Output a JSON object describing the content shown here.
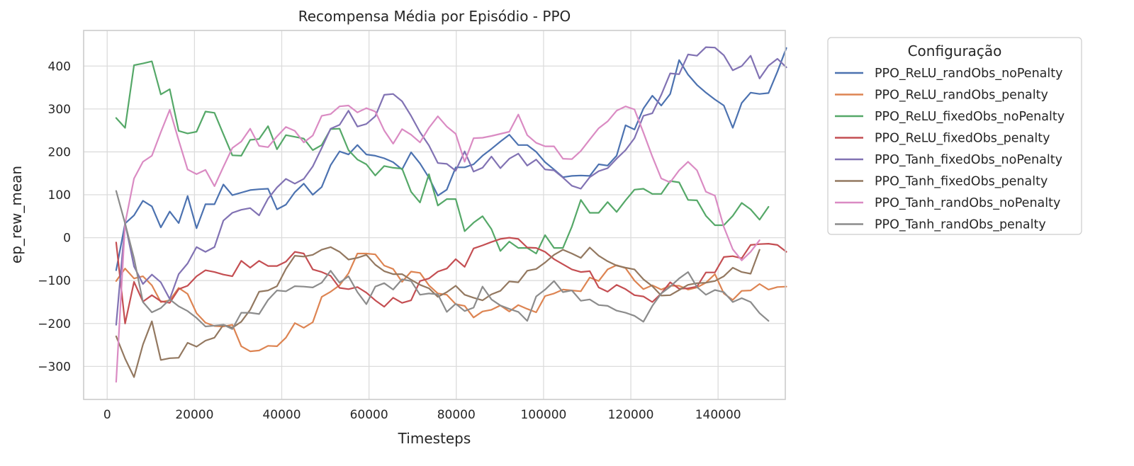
{
  "chart_data": {
    "type": "line",
    "title": "Recompensa Média por Episódio - PPO",
    "xlabel": "Timesteps",
    "ylabel": "ep_rew_mean",
    "xlim": [
      -5400,
      155400
    ],
    "ylim": [
      -377,
      483
    ],
    "xticks": [
      0,
      20000,
      40000,
      60000,
      80000,
      100000,
      120000,
      140000
    ],
    "yticks": [
      -300,
      -200,
      -100,
      0,
      100,
      200,
      300,
      400
    ],
    "grid": true,
    "legend": {
      "title": "Configuração",
      "placement": "outside-right"
    },
    "x_start": 2048,
    "x_step": 2048,
    "series": [
      {
        "name": "PPO_ReLU_randObs_noPenalty",
        "color": "#4c72b0",
        "values": [
          -76,
          33,
          52,
          86,
          73,
          24,
          61,
          34,
          97,
          22,
          78,
          78,
          124,
          99,
          105,
          111,
          113,
          114,
          66,
          77,
          106,
          126,
          100,
          118,
          169,
          201,
          194,
          216,
          194,
          191,
          185,
          176,
          159,
          199,
          173,
          140,
          98,
          112,
          164,
          164,
          171,
          191,
          207,
          224,
          240,
          216,
          216,
          200,
          176,
          159,
          141,
          144,
          145,
          144,
          171,
          168,
          191,
          262,
          252,
          301,
          331,
          308,
          335,
          414,
          380,
          356,
          338,
          322,
          308,
          256,
          314,
          338,
          335,
          337,
          387,
          442
        ]
      },
      {
        "name": "PPO_ReLU_randObs_penalty",
        "color": "#dd8452",
        "values": [
          -101,
          -72,
          -95,
          -90,
          -111,
          -150,
          -146,
          -117,
          -131,
          -176,
          -198,
          -206,
          -207,
          -203,
          -253,
          -265,
          -263,
          -252,
          -253,
          -233,
          -199,
          -210,
          -197,
          -138,
          -126,
          -111,
          -83,
          -37,
          -37,
          -39,
          -65,
          -73,
          -103,
          -79,
          -82,
          -111,
          -130,
          -133,
          -155,
          -159,
          -186,
          -172,
          -168,
          -158,
          -172,
          -157,
          -166,
          -174,
          -136,
          -130,
          -121,
          -123,
          -125,
          -93,
          -101,
          -74,
          -64,
          -71,
          -100,
          -120,
          -111,
          -121,
          -112,
          -112,
          -121,
          -116,
          -105,
          -85,
          -130,
          -145,
          -124,
          -123,
          -108,
          -121,
          -115,
          -114
        ]
      },
      {
        "name": "PPO_ReLU_fixedObs_noPenalty",
        "color": "#55a868",
        "values": [
          279,
          256,
          402,
          406,
          411,
          334,
          346,
          249,
          243,
          247,
          294,
          291,
          241,
          192,
          191,
          228,
          230,
          260,
          206,
          239,
          235,
          231,
          204,
          216,
          253,
          254,
          204,
          182,
          171,
          145,
          167,
          163,
          161,
          107,
          82,
          148,
          75,
          90,
          90,
          15,
          35,
          50,
          20,
          -31,
          -9,
          -24,
          -24,
          -37,
          6,
          -24,
          -24,
          26,
          88,
          58,
          58,
          83,
          60,
          87,
          112,
          114,
          102,
          102,
          132,
          129,
          88,
          87,
          51,
          29,
          29,
          51,
          81,
          66,
          42,
          72
        ]
      },
      {
        "name": "PPO_ReLU_fixedObs_penalty",
        "color": "#c44e52",
        "values": [
          -11,
          -200,
          -103,
          -149,
          -134,
          -148,
          -152,
          -120,
          -112,
          -90,
          -76,
          -80,
          -86,
          -90,
          -54,
          -70,
          -54,
          -66,
          -66,
          -56,
          -33,
          -37,
          -74,
          -80,
          -89,
          -117,
          -120,
          -115,
          -128,
          -146,
          -161,
          -140,
          -152,
          -146,
          -101,
          -95,
          -79,
          -72,
          -50,
          -68,
          -25,
          -18,
          -10,
          -3,
          0,
          -3,
          -23,
          -24,
          -33,
          -50,
          -62,
          -74,
          -80,
          -78,
          -116,
          -126,
          -110,
          -120,
          -134,
          -137,
          -150,
          -130,
          -104,
          -119,
          -118,
          -114,
          -81,
          -81,
          -45,
          -43,
          -48,
          -17,
          -15,
          -14,
          -17,
          -33
        ]
      },
      {
        "name": "PPO_Tanh_fixedObs_noPenalty",
        "color": "#8172b3",
        "values": [
          -203,
          34,
          -67,
          -108,
          -86,
          -104,
          -143,
          -85,
          -60,
          -22,
          -33,
          -22,
          40,
          58,
          65,
          69,
          52,
          91,
          117,
          137,
          126,
          137,
          166,
          209,
          254,
          263,
          296,
          259,
          265,
          283,
          333,
          335,
          318,
          284,
          246,
          215,
          174,
          172,
          156,
          201,
          154,
          163,
          189,
          162,
          184,
          196,
          168,
          182,
          159,
          157,
          140,
          121,
          114,
          141,
          155,
          162,
          184,
          204,
          232,
          284,
          290,
          333,
          383,
          381,
          427,
          424,
          444,
          443,
          425,
          390,
          400,
          424,
          371,
          401,
          417,
          397
        ]
      },
      {
        "name": "PPO_Tanh_fixedObs_penalty",
        "color": "#937860",
        "values": [
          -230,
          -282,
          -325,
          -249,
          -195,
          -285,
          -281,
          -280,
          -245,
          -254,
          -240,
          -233,
          -203,
          -210,
          -196,
          -168,
          -126,
          -123,
          -113,
          -73,
          -42,
          -44,
          -40,
          -28,
          -22,
          -33,
          -51,
          -47,
          -40,
          -63,
          -78,
          -85,
          -85,
          -98,
          -110,
          -118,
          -138,
          -127,
          -112,
          -133,
          -140,
          -146,
          -132,
          -124,
          -102,
          -104,
          -77,
          -73,
          -58,
          -40,
          -28,
          -37,
          -47,
          -23,
          -42,
          -55,
          -65,
          -70,
          -74,
          -97,
          -113,
          -135,
          -134,
          -122,
          -110,
          -106,
          -105,
          -101,
          -90,
          -70,
          -80,
          -84,
          -28
        ]
      },
      {
        "name": "PPO_Tanh_randObs_noPenalty",
        "color": "#da8bc3",
        "values": [
          -336,
          33,
          138,
          177,
          191,
          246,
          298,
          227,
          159,
          148,
          158,
          120,
          165,
          209,
          224,
          254,
          214,
          211,
          236,
          258,
          249,
          222,
          238,
          284,
          288,
          306,
          308,
          292,
          302,
          294,
          250,
          219,
          253,
          240,
          222,
          256,
          283,
          259,
          242,
          177,
          232,
          233,
          237,
          242,
          247,
          287,
          239,
          221,
          213,
          213,
          184,
          183,
          202,
          229,
          255,
          271,
          296,
          306,
          299,
          245,
          189,
          138,
          129,
          157,
          177,
          157,
          107,
          98,
          25,
          -27,
          -53,
          -33,
          -6
        ]
      },
      {
        "name": "PPO_Tanh_randObs_penalty",
        "color": "#8c8c8c",
        "values": [
          109,
          33,
          -48,
          -150,
          -174,
          -164,
          -144,
          -160,
          -171,
          -187,
          -207,
          -205,
          -203,
          -213,
          -175,
          -175,
          -178,
          -145,
          -123,
          -125,
          -113,
          -114,
          -116,
          -105,
          -77,
          -105,
          -90,
          -127,
          -155,
          -114,
          -106,
          -121,
          -97,
          -101,
          -133,
          -130,
          -132,
          -173,
          -154,
          -171,
          -163,
          -114,
          -144,
          -158,
          -166,
          -173,
          -194,
          -137,
          -121,
          -101,
          -127,
          -123,
          -147,
          -144,
          -157,
          -159,
          -170,
          -175,
          -182,
          -196,
          -159,
          -130,
          -114,
          -95,
          -80,
          -115,
          -133,
          -122,
          -127,
          -150,
          -141,
          -150,
          -176,
          -194
        ]
      }
    ]
  }
}
